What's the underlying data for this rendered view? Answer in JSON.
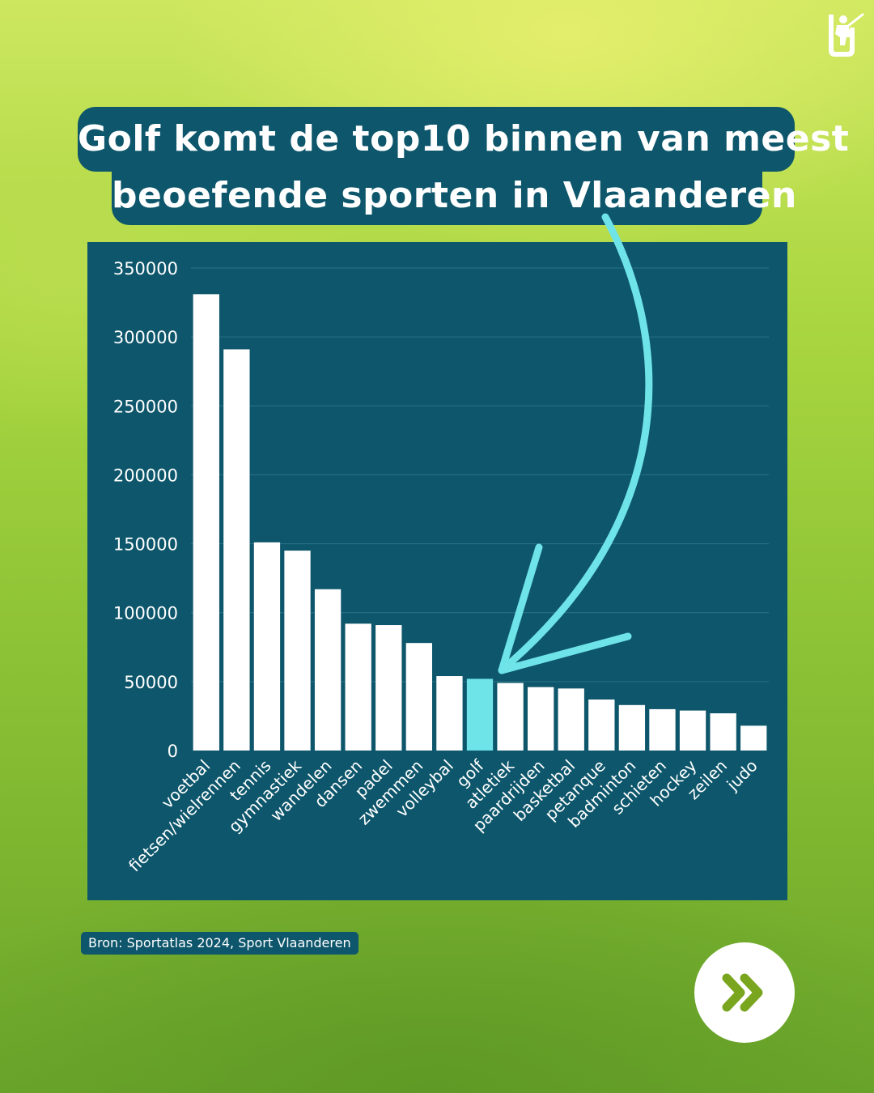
{
  "title": {
    "line1": "Golf komt de top10 binnen van meest",
    "line2": "beoefende sporten in Vlaanderen"
  },
  "source": "Bron: Sportatlas 2024, Sport Vlaanderen",
  "icons": {
    "logo": "golfer-logo-icon",
    "next": "double-chevron-right-icon"
  },
  "colors": {
    "panel": "#0d566b",
    "bar": "#ffffff",
    "highlight": "#6ee3e8",
    "next_chevron": "#7aa51e"
  },
  "chart_data": {
    "type": "bar",
    "title": "",
    "xlabel": "",
    "ylabel": "",
    "ylim": [
      0,
      350000
    ],
    "yticks": [
      "0",
      "50000",
      "100000",
      "150000",
      "200000",
      "250000",
      "300000",
      "350000"
    ],
    "grid": true,
    "categories": [
      "voetbal",
      "fietsen/wielrennen",
      "tennis",
      "gymnastiek",
      "wandelen",
      "dansen",
      "padel",
      "zwemmen",
      "volleybal",
      "golf",
      "atletiek",
      "paardrijden",
      "basketbal",
      "petanque",
      "badminton",
      "schieten",
      "hockey",
      "zeilen",
      "judo"
    ],
    "values": [
      331000,
      291000,
      151000,
      145000,
      117000,
      92000,
      91000,
      78000,
      54000,
      52000,
      49000,
      46000,
      45000,
      37000,
      33000,
      30000,
      29000,
      27000,
      18000
    ],
    "highlight": "golf"
  }
}
